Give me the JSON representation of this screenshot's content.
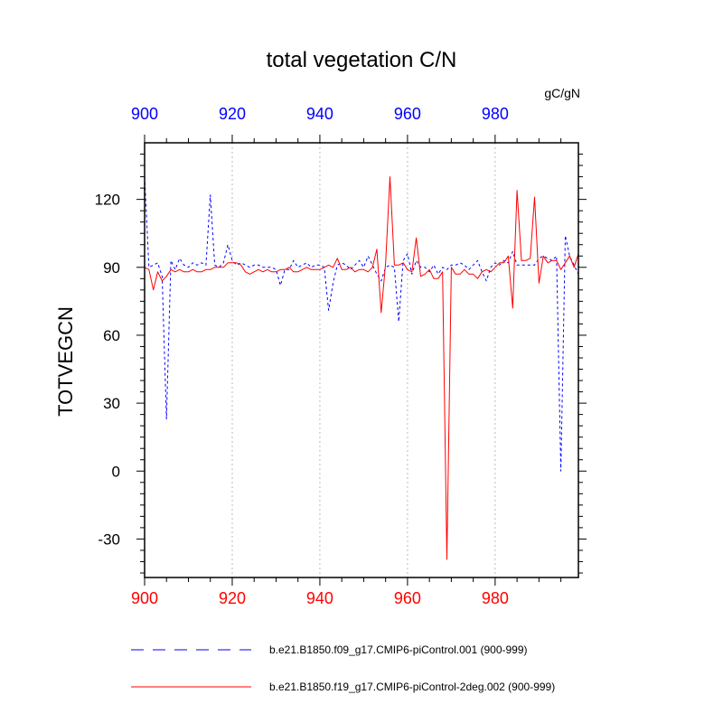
{
  "chart_data": {
    "type": "line",
    "title": "total vegetation C/N",
    "units": "gC/gN",
    "ylabel": "TOTVEGCN",
    "xlabel": "",
    "xlim": [
      900,
      999
    ],
    "ylim": [
      -47,
      145
    ],
    "x_ticks": [
      900,
      920,
      940,
      960,
      980
    ],
    "y_ticks": [
      -30,
      0,
      30,
      60,
      90,
      120
    ],
    "grid": "vertical dotted lines at major x ticks",
    "legend_position": "bottom",
    "colors": {
      "top_axis": "#0000ff",
      "bottom_axis": "#ff0000",
      "series1": "#0000ff",
      "series2": "#ff0000"
    },
    "x_start": 900,
    "series": [
      {
        "name": "b.e21.B1850.f09_g17.CMIP6-piControl.001 (900-999)",
        "color": "#0000ff",
        "dash": "dashed",
        "values": [
          130,
          90,
          91,
          92,
          86,
          23,
          93,
          89,
          94,
          91,
          90,
          92,
          91,
          92,
          91,
          122,
          91,
          90,
          92,
          100,
          93,
          91,
          92,
          91,
          90,
          91,
          91,
          90,
          90,
          90,
          89,
          82,
          89,
          89,
          93,
          90,
          91,
          92,
          90,
          91,
          91,
          90,
          71,
          83,
          91,
          92,
          91,
          89,
          91,
          93,
          90,
          95,
          91,
          87,
          84,
          90,
          91,
          90,
          66,
          93,
          96,
          87,
          93,
          90,
          90,
          88,
          91,
          87,
          90,
          89,
          91,
          91,
          92,
          91,
          89,
          91,
          93,
          88,
          84,
          90,
          92,
          91,
          93,
          92,
          97,
          91,
          91,
          91,
          91,
          91,
          94,
          95,
          94,
          93,
          95,
          0,
          104,
          95,
          91,
          87
        ]
      },
      {
        "name": "b.e21.B1850.f19_g17.CMIP6-piControl-2deg.002 (900-999)",
        "color": "#ff0000",
        "dash": "solid",
        "values": [
          90,
          89,
          80,
          88,
          84,
          86,
          89,
          88,
          89,
          88,
          88,
          89,
          88,
          88,
          89,
          89,
          90,
          90,
          90,
          92,
          92,
          92,
          91,
          88,
          87,
          88,
          89,
          88,
          89,
          88,
          88,
          89,
          89,
          90,
          88,
          88,
          89,
          90,
          89,
          89,
          89,
          90,
          91,
          90,
          94,
          89,
          89,
          90,
          88,
          89,
          89,
          88,
          90,
          98,
          70,
          92,
          130,
          91,
          91,
          92,
          89,
          88,
          103,
          86,
          87,
          89,
          85,
          85,
          88,
          -39,
          90,
          87,
          87,
          89,
          87,
          87,
          85,
          88,
          89,
          88,
          90,
          92,
          92,
          95,
          72,
          124,
          93,
          93,
          94,
          121,
          83,
          95,
          92,
          93,
          93,
          89,
          92,
          95,
          90,
          96
        ]
      }
    ]
  }
}
